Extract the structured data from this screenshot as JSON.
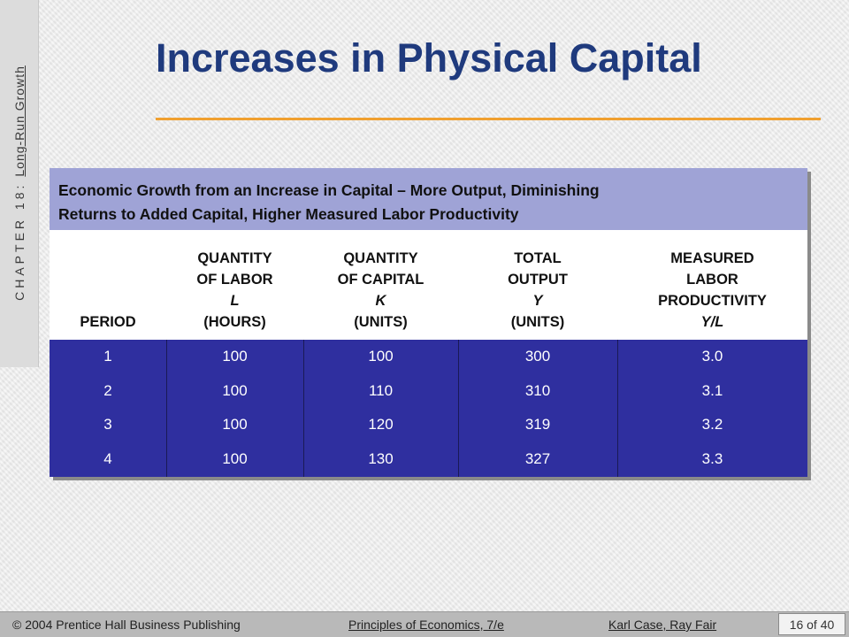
{
  "sidebar": {
    "chapter": "CHAPTER 18:",
    "topic": "Long-Run Growth"
  },
  "title": "Increases in Physical Capital",
  "table": {
    "caption_line1": "Economic Growth from an Increase in Capital – More Output, Diminishing",
    "caption_line2": "Returns to Added Capital, Higher Measured Labor Productivity",
    "columns": [
      {
        "lines": [
          "PERIOD"
        ],
        "symbol": ""
      },
      {
        "lines": [
          "QUANTITY",
          "OF LABOR"
        ],
        "symbol": "L",
        "unit": "(HOURS)"
      },
      {
        "lines": [
          "QUANTITY",
          "OF CAPITAL"
        ],
        "symbol": "K",
        "unit": "(UNITS)"
      },
      {
        "lines": [
          "TOTAL",
          "OUTPUT"
        ],
        "symbol": "Y",
        "unit": "(UNITS)"
      },
      {
        "lines": [
          "MEASURED",
          "LABOR",
          "PRODUCTIVITY"
        ],
        "symbol": "Y/L",
        "unit": ""
      }
    ],
    "rows": [
      [
        "1",
        "100",
        "100",
        "300",
        "3.0"
      ],
      [
        "2",
        "100",
        "110",
        "310",
        "3.1"
      ],
      [
        "3",
        "100",
        "120",
        "319",
        "3.2"
      ],
      [
        "4",
        "100",
        "130",
        "327",
        "3.3"
      ]
    ]
  },
  "footer": {
    "copyright": "© 2004 Prentice Hall Business Publishing",
    "book": "Principles of Economics, 7/e",
    "authors": "Karl Case, Ray Fair",
    "page": "16 of 40"
  },
  "colors": {
    "title": "#1f3a7d",
    "accent_rule": "#f0a030",
    "caption_bg": "#9fa3d6",
    "body_bg": "#2f2f9f"
  }
}
